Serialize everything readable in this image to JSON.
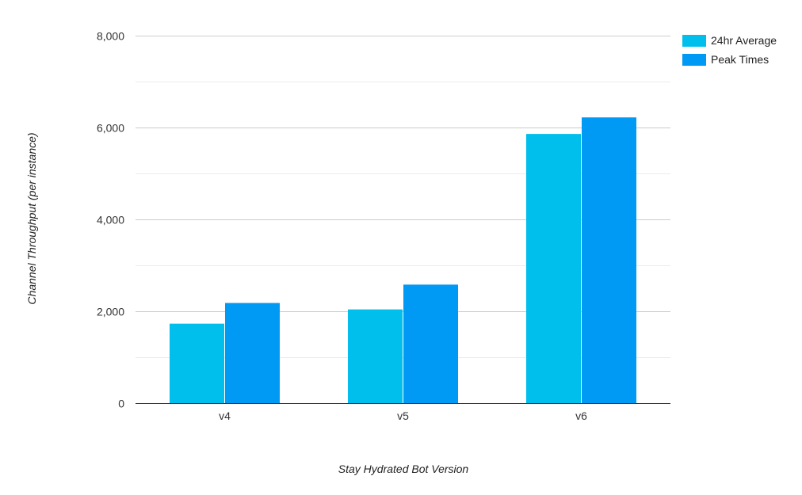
{
  "chart_data": {
    "type": "bar",
    "categories": [
      "v4",
      "v5",
      "v6"
    ],
    "series": [
      {
        "name": "24hr Average",
        "values": [
          1730,
          2040,
          5860
        ],
        "color": "#00BFEC"
      },
      {
        "name": "Peak Times",
        "values": [
          2180,
          2580,
          6220
        ],
        "color": "#0099F3"
      }
    ],
    "xlabel": "Stay Hydrated Bot Version",
    "ylabel": "Channel Throughput (per instance)",
    "ylim": [
      0,
      8000
    ],
    "yticks": [
      0,
      2000,
      4000,
      6000,
      8000
    ],
    "ytick_labels": [
      "0",
      "2,000",
      "4,000",
      "6,000",
      "8,000"
    ],
    "minor_gridlines": true,
    "grid": true,
    "legend_position": "top-right"
  }
}
